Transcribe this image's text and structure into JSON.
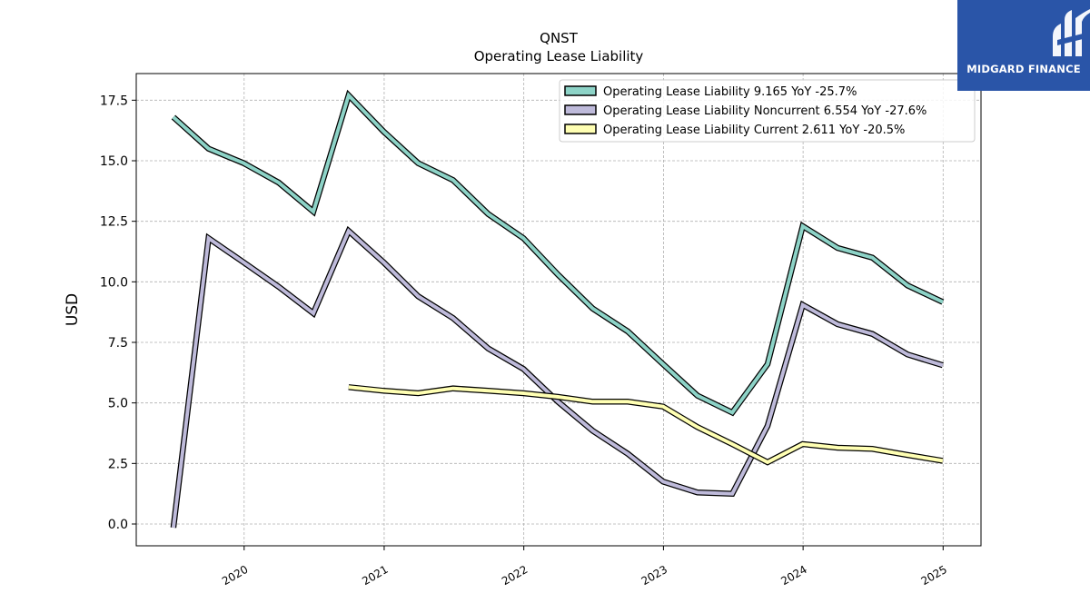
{
  "brand": {
    "name": "MIDGARD FINANCE",
    "color": "#2a55a8"
  },
  "chart_data": {
    "type": "line",
    "title": "QNST",
    "subtitle": "Operating Lease Liability",
    "ylabel": "USD",
    "xlabel": "",
    "ylim": [
      -0.9,
      18.6
    ],
    "yticks": [
      0.0,
      2.5,
      5.0,
      7.5,
      10.0,
      12.5,
      15.0,
      17.5
    ],
    "ytick_labels": [
      "0.0",
      "2.5",
      "5.0",
      "7.5",
      "10.0",
      "12.5",
      "15.0",
      "17.5"
    ],
    "xlim": [
      "2019-03-25",
      "2025-04-10"
    ],
    "xtick_labels": [
      "2020",
      "2021",
      "2022",
      "2023",
      "2024",
      "2025"
    ],
    "grid": true,
    "legend_position": "top-right",
    "series": [
      {
        "name": "Operating Lease Liability",
        "legend": "Operating Lease Liability  9.165 YoY -25.7%",
        "color": "#8dd3c7",
        "x": [
          "2019-06-30",
          "2019-09-30",
          "2019-12-31",
          "2020-03-31",
          "2020-06-30",
          "2020-09-30",
          "2020-12-31",
          "2021-03-31",
          "2021-06-30",
          "2021-09-30",
          "2021-12-31",
          "2022-03-31",
          "2022-06-30",
          "2022-09-30",
          "2022-12-31",
          "2023-03-31",
          "2023-06-30",
          "2023-09-30",
          "2023-12-31",
          "2024-03-31",
          "2024-06-30",
          "2024-09-30",
          "2024-12-31"
        ],
        "y": [
          16.8,
          15.5,
          14.9,
          14.1,
          12.9,
          17.7,
          16.2,
          14.9,
          14.2,
          12.8,
          11.8,
          10.3,
          8.9,
          7.95,
          6.6,
          5.3,
          4.6,
          6.6,
          12.3,
          11.4,
          11.0,
          9.85,
          9.165
        ]
      },
      {
        "name": "Operating Lease Liability Noncurrent",
        "legend": "Operating Lease Liability Noncurrent  6.554 YoY -27.6%",
        "color": "#bebada",
        "x": [
          "2019-06-30",
          "2019-09-30",
          "2019-12-31",
          "2020-03-31",
          "2020-06-30",
          "2020-09-30",
          "2020-12-31",
          "2021-03-31",
          "2021-06-30",
          "2021-09-30",
          "2021-12-31",
          "2022-03-31",
          "2022-06-30",
          "2022-09-30",
          "2022-12-31",
          "2023-03-31",
          "2023-06-30",
          "2023-09-30",
          "2023-12-31",
          "2024-03-31",
          "2024-06-30",
          "2024-09-30",
          "2024-12-31"
        ],
        "y": [
          -0.15,
          11.8,
          10.8,
          9.8,
          8.7,
          12.1,
          10.8,
          9.4,
          8.5,
          7.25,
          6.4,
          5.05,
          3.85,
          2.9,
          1.75,
          1.3,
          1.25,
          4.05,
          9.05,
          8.25,
          7.85,
          7.0,
          6.554
        ]
      },
      {
        "name": "Operating Lease Liability Current",
        "legend": "Operating Lease Liability Current  2.611 YoY -20.5%",
        "color": "#ffffb3",
        "x": [
          "2020-09-30",
          "2020-12-31",
          "2021-03-31",
          "2021-06-30",
          "2021-09-30",
          "2021-12-31",
          "2022-03-31",
          "2022-06-30",
          "2022-09-30",
          "2022-12-31",
          "2023-03-31",
          "2023-06-30",
          "2023-09-30",
          "2023-12-31",
          "2024-03-31",
          "2024-06-30",
          "2024-09-30",
          "2024-12-31"
        ],
        "y": [
          5.65,
          5.5,
          5.4,
          5.6,
          5.5,
          5.4,
          5.25,
          5.05,
          5.05,
          4.85,
          4.0,
          3.3,
          2.55,
          3.3,
          3.15,
          3.1,
          2.85,
          2.611
        ]
      }
    ]
  }
}
